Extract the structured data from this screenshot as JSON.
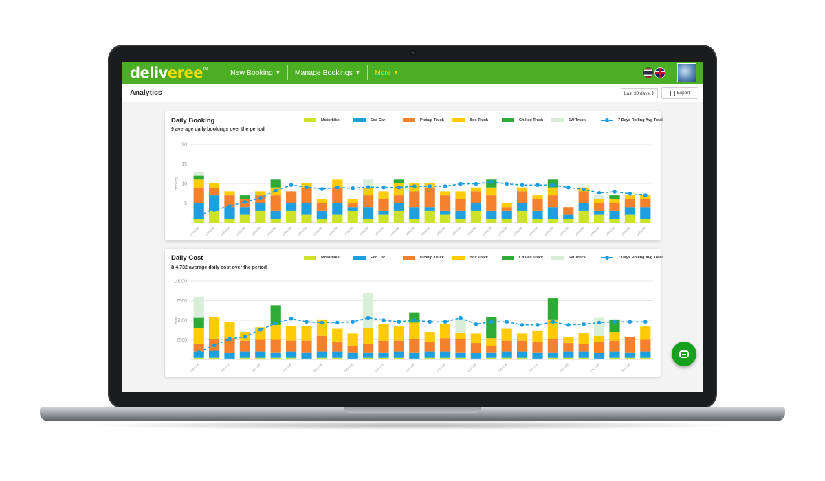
{
  "header": {
    "logo_main": "deliv",
    "logo_accent": "eree",
    "logo_tm": "TM",
    "nav": [
      {
        "label": "New Booking",
        "caret": "▼"
      },
      {
        "label": "Manage Bookings",
        "caret": "▼"
      },
      {
        "label": "More",
        "caret": "▼"
      }
    ]
  },
  "subheader": {
    "title": "Analytics",
    "range_value": "Last 30 days ⇕",
    "export_label": "Export"
  },
  "legend": [
    {
      "name": "Motorbike",
      "color": "#cde22a"
    },
    {
      "name": "Eco Car",
      "color": "#1e9fe0"
    },
    {
      "name": "Pickup Truck",
      "color": "#f5812e"
    },
    {
      "name": "Box Truck",
      "color": "#ffcb05"
    },
    {
      "name": "Chilled Truck",
      "color": "#2eab37"
    },
    {
      "name": "6W Truck",
      "color": "#d8eed8"
    }
  ],
  "legend_avg": "7 Days Rolling Avg Total",
  "chart_data": [
    {
      "type": "bar",
      "stacked": true,
      "title": "Daily Booking",
      "subtitle": "9 average daily bookings over the period",
      "ylabel": "Booking",
      "ylim": [
        0,
        20
      ],
      "yticks": [
        5,
        10,
        15,
        20
      ],
      "x_tick_labels": [
        "01/01/18",
        "02/01/18",
        "03/01/18",
        "04/01/18",
        "05/01/18",
        "06/01/18",
        "07/01/18",
        "08/01/18",
        "09/01/18",
        "10/01/18",
        "11/01/18",
        "12/01/18",
        "13/01/18",
        "14/01/18",
        "15/01/18",
        "16/01/18",
        "17/01/18",
        "18/01/18",
        "19/01/18",
        "20/01/18",
        "21/01/18",
        "22/01/18",
        "23/01/18",
        "24/01/18",
        "25/01/18",
        "26/01/18",
        "27/01/18",
        "28/01/18",
        "29/01/18",
        "30/01/18"
      ],
      "series": [
        {
          "name": "Motorbike",
          "values": [
            1,
            3,
            1,
            2,
            3,
            1,
            3,
            2,
            1,
            2,
            3,
            1,
            2,
            3,
            1,
            3,
            2,
            1,
            3,
            1,
            1,
            3,
            1,
            1,
            1,
            3,
            2,
            1,
            2,
            1
          ]
        },
        {
          "name": "Eco Car",
          "values": [
            4,
            4,
            3,
            2,
            2,
            2,
            2,
            3,
            2,
            3,
            1,
            3,
            1,
            2,
            3,
            1,
            1,
            2,
            2,
            2,
            2,
            2,
            2,
            3,
            1,
            2,
            1,
            2,
            2,
            3
          ]
        },
        {
          "name": "Pickup Truck",
          "values": [
            4,
            2,
            3,
            2,
            2,
            4,
            3,
            4,
            2,
            4,
            1,
            3,
            3,
            2,
            4,
            5,
            4,
            3,
            3,
            4,
            1,
            3,
            3,
            3,
            2,
            3,
            2,
            2,
            2,
            2
          ]
        },
        {
          "name": "Box Truck",
          "values": [
            2,
            1,
            1,
            0,
            1,
            2,
            0,
            1,
            1,
            2,
            1,
            2,
            2,
            3,
            2,
            1,
            1,
            2,
            1,
            2,
            1,
            1,
            1,
            2,
            0,
            1,
            1,
            1,
            1,
            1
          ]
        },
        {
          "name": "Chilled Truck",
          "values": [
            1,
            0,
            0,
            1,
            0,
            2,
            0,
            0,
            0,
            0,
            0,
            0,
            0,
            1,
            0,
            0,
            0,
            0,
            0,
            2,
            0,
            0,
            0,
            2,
            0,
            0,
            0,
            1,
            0,
            0
          ]
        },
        {
          "name": "6W Truck",
          "values": [
            1,
            0,
            0,
            0,
            0,
            0,
            0,
            0,
            0,
            0,
            0,
            2,
            0,
            0,
            0,
            0,
            0,
            0,
            0,
            0,
            0,
            0,
            0,
            0,
            0,
            0,
            1,
            0,
            0,
            0
          ]
        }
      ],
      "rolling_avg": {
        "name": "7 Days Rolling Avg Total",
        "values": [
          1.8,
          3.3,
          4.2,
          5.3,
          6.3,
          8.2,
          9.6,
          9.1,
          8.6,
          9.0,
          8.8,
          9.1,
          9.0,
          9.0,
          9.3,
          9.3,
          9.3,
          9.9,
          9.9,
          10.4,
          9.9,
          9.6,
          9.6,
          9.6,
          9.0,
          8.5,
          7.6,
          7.9,
          7.4,
          7.0
        ]
      }
    },
    {
      "type": "bar",
      "stacked": true,
      "title": "Daily Cost",
      "subtitle": "฿ 4,732 average daily cost over the period",
      "ylabel": "Baht",
      "ylim": [
        0,
        10000
      ],
      "yticks": [
        2500,
        5000,
        7500,
        10000
      ],
      "x_tick_labels": [
        "01/01/18",
        "03/01/18",
        "05/01/18",
        "07/01/18",
        "09/01/18",
        "11/01/18",
        "13/01/18",
        "15/01/18",
        "17/01/18",
        "19/01/18",
        "21/01/18",
        "23/01/18",
        "25/01/18",
        "27/01/18",
        "29/01/18"
      ],
      "series": [
        {
          "name": "Motorbike",
          "values": [
            200,
            200,
            100,
            200,
            200,
            200,
            200,
            100,
            200,
            200,
            100,
            200,
            200,
            200,
            100,
            200,
            200,
            200,
            100,
            200,
            200,
            200,
            100,
            200,
            200,
            200,
            100,
            200,
            200,
            200
          ]
        },
        {
          "name": "Eco Car",
          "values": [
            800,
            900,
            700,
            800,
            800,
            700,
            800,
            800,
            800,
            800,
            800,
            700,
            700,
            800,
            800,
            800,
            800,
            700,
            700,
            700,
            800,
            800,
            800,
            700,
            800,
            800,
            700,
            800,
            700,
            800
          ]
        },
        {
          "name": "Pickup Truck",
          "values": [
            1000,
            1500,
            1900,
            1400,
            1500,
            1600,
            1400,
            1500,
            2000,
            1300,
            800,
            1100,
            1500,
            1400,
            1700,
            1200,
            1700,
            1700,
            1300,
            800,
            1400,
            1400,
            1300,
            1700,
            1100,
            1000,
            1400,
            1400,
            2000,
            1500
          ]
        },
        {
          "name": "Box Truck",
          "values": [
            2000,
            2800,
            2100,
            1100,
            1600,
            1900,
            1900,
            1900,
            2100,
            1600,
            1600,
            2000,
            2100,
            1800,
            2100,
            1300,
            1800,
            800,
            1200,
            1000,
            1500,
            900,
            1500,
            2500,
            800,
            1400,
            800,
            1100,
            0,
            1700
          ]
        },
        {
          "name": "Chilled Truck",
          "values": [
            1300,
            0,
            0,
            0,
            0,
            2500,
            0,
            0,
            0,
            0,
            0,
            0,
            0,
            0,
            1300,
            0,
            0,
            0,
            0,
            2700,
            0,
            0,
            0,
            2700,
            0,
            0,
            0,
            1600,
            0,
            0
          ]
        },
        {
          "name": "6W Truck",
          "values": [
            2700,
            0,
            0,
            0,
            0,
            0,
            0,
            0,
            0,
            0,
            0,
            4500,
            0,
            0,
            0,
            0,
            0,
            1800,
            0,
            0,
            0,
            0,
            0,
            0,
            0,
            0,
            2300,
            0,
            0,
            0
          ]
        }
      ],
      "rolling_avg": {
        "name": "7 Days Rolling Avg Total",
        "values": [
          900,
          1800,
          2600,
          2900,
          3800,
          4600,
          5200,
          4800,
          4700,
          4700,
          4800,
          5300,
          5000,
          4800,
          5000,
          4800,
          4800,
          5300,
          4500,
          4800,
          4800,
          4400,
          4400,
          4800,
          4400,
          4500,
          4700,
          4800,
          4800,
          4800
        ]
      }
    }
  ]
}
